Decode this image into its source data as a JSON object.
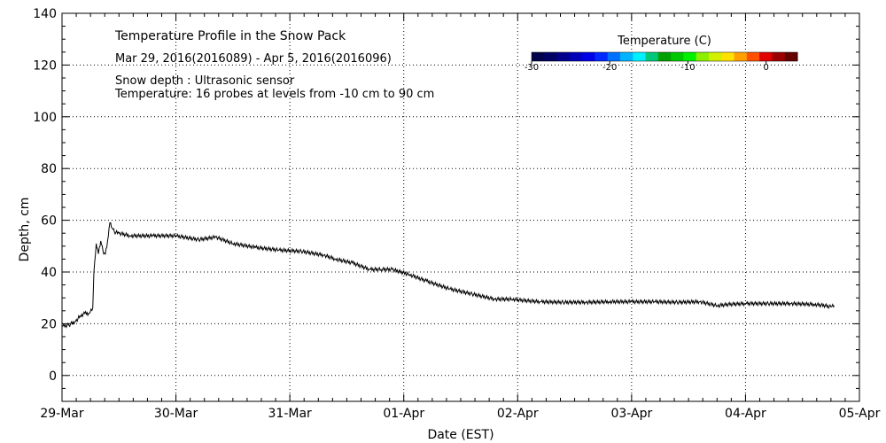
{
  "chart_data": {
    "type": "line",
    "title": "Temperature Profile in the Snow Pack",
    "date_range": "Mar 29, 2016(2016089) - Apr  5, 2016(2016096)",
    "notes": [
      "Snow depth : Ultrasonic sensor",
      "Temperature: 16 probes at levels from -10 cm to 90 cm"
    ],
    "xlabel": "Date (EST)",
    "ylabel": "Depth, cm",
    "ylim": [
      -10,
      140
    ],
    "xlim": [
      0,
      7
    ],
    "grid": true,
    "x_tick_labels": [
      "29-Mar",
      "30-Mar",
      "31-Mar",
      "01-Apr",
      "02-Apr",
      "03-Apr",
      "04-Apr",
      "05-Apr"
    ],
    "y_tick_labels": [
      "0",
      "20",
      "40",
      "60",
      "80",
      "100",
      "120",
      "140"
    ],
    "y_tick_values": [
      0,
      20,
      40,
      60,
      80,
      100,
      120,
      140
    ],
    "series": [
      {
        "name": "Snow depth",
        "x": [
          0.0,
          0.06,
          0.12,
          0.16,
          0.2,
          0.24,
          0.27,
          0.28,
          0.3,
          0.32,
          0.34,
          0.36,
          0.38,
          0.4,
          0.42,
          0.44,
          0.46,
          0.5,
          0.6,
          0.8,
          1.0,
          1.2,
          1.35,
          1.5,
          1.7,
          1.9,
          2.1,
          2.3,
          2.4,
          2.55,
          2.7,
          2.8,
          2.9,
          3.05,
          3.2,
          3.4,
          3.6,
          3.8,
          3.95,
          4.05,
          4.2,
          4.4,
          4.6,
          4.8,
          5.0,
          5.2,
          5.4,
          5.6,
          5.75,
          5.85,
          6.0,
          6.2,
          6.4,
          6.6,
          6.7,
          6.75,
          6.78
        ],
        "values": [
          19,
          19.5,
          21,
          23,
          24,
          24,
          26,
          40,
          51,
          47,
          52,
          48,
          47,
          52,
          59,
          57,
          55.5,
          55,
          54,
          54,
          54,
          52.5,
          53.5,
          51,
          49.5,
          48.5,
          48,
          46.5,
          45,
          43.5,
          41,
          41,
          41,
          39,
          36.5,
          33.5,
          31.5,
          29.5,
          29.5,
          29,
          28.5,
          28.3,
          28.3,
          28.5,
          28.5,
          28.5,
          28.3,
          28.5,
          27,
          27.5,
          27.8,
          27.8,
          27.8,
          27.5,
          27,
          26.5,
          27
        ]
      }
    ],
    "colorbar": {
      "title": "Temperature (C)",
      "tick_labels": [
        "-30",
        "-20",
        "-10",
        "0"
      ],
      "tick_values": [
        -30,
        -20,
        -10,
        0
      ],
      "range": [
        -30,
        4
      ],
      "colors": [
        "#00004b",
        "#000064",
        "#00008c",
        "#0000b9",
        "#0000e6",
        "#0028ff",
        "#0070ff",
        "#00b4ff",
        "#00f0ff",
        "#00c878",
        "#00a000",
        "#00c800",
        "#00f000",
        "#8cf000",
        "#d2f000",
        "#ffe100",
        "#ffa000",
        "#ff5000",
        "#e10000",
        "#9b0000",
        "#640000"
      ]
    },
    "colors": {
      "line": "#000000",
      "grid": "#000000",
      "frame": "#000000"
    }
  }
}
